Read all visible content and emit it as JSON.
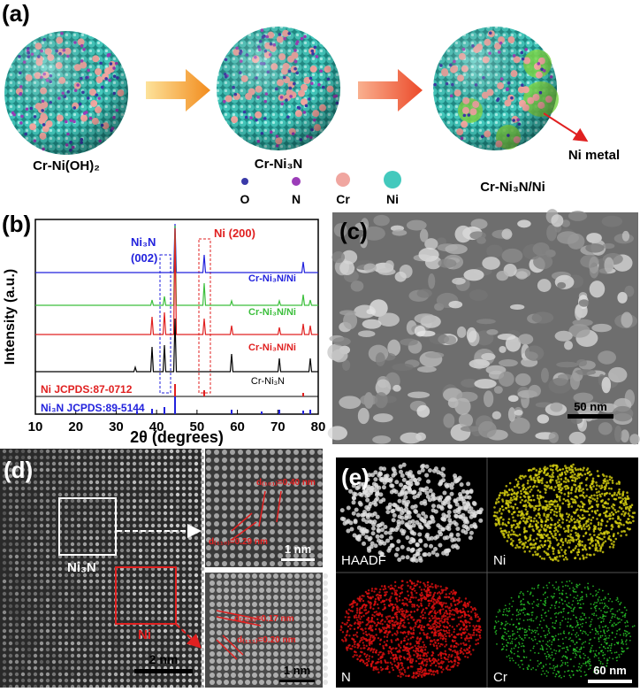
{
  "panel_labels": [
    "(a)",
    "(b)",
    "(c)",
    "(d)",
    "(e)"
  ],
  "scheme": {
    "materials": [
      "Cr-Ni(OH)₂",
      "Cr-Ni₃N",
      "Cr-Ni₃N/Ni"
    ],
    "legend": [
      "O",
      "N",
      "Cr",
      "Ni"
    ],
    "annotation": "Ni metal"
  },
  "xrd": {
    "y_label": "Intensity (a.u.)",
    "x_label": "2θ (degrees)",
    "xlim": [
      10,
      80
    ],
    "xticks": [
      10,
      20,
      30,
      40,
      50,
      60,
      70,
      80
    ],
    "annotations": [
      "Ni₃N",
      "(002)",
      "Ni (200)"
    ],
    "traces": [
      "Cr-Ni₃N/Ni",
      "Cr-Ni₃N/Ni",
      "Cr-Ni₃N/Ni",
      "Cr-Ni₃N"
    ],
    "references": [
      "Ni JCPDS:87-0712",
      "Ni₃N JCPDS:89-5144"
    ]
  },
  "sem": {
    "scale_bar": "50 nm"
  },
  "tem": {
    "labels": [
      "Ni₃N",
      "Ni"
    ],
    "scale_bars": [
      "2 nm",
      "1 nm",
      "1 nm"
    ],
    "d_spacings": [
      "d₍₁₀₁₎=0.40 nm",
      "d₍₁₁₀₎=0.29 nm",
      "d₍₂₀₀₎=0.17 nm",
      "d₍₁₁₁₎=0.20 nm"
    ]
  },
  "eds": {
    "maps": [
      "HAADF",
      "Ni",
      "N",
      "Cr"
    ],
    "scale_bar": "60 nm"
  }
}
